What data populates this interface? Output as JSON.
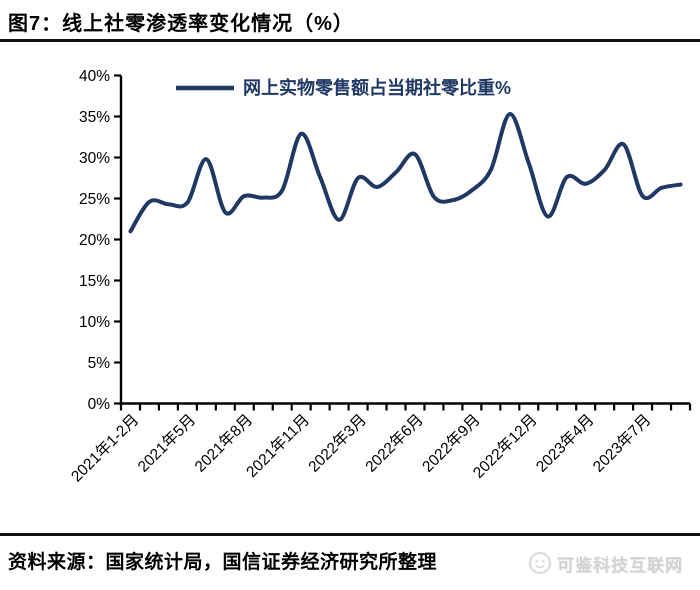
{
  "page": {
    "title": "图7：线上社零渗透率变化情况（%）",
    "source_note": "资料来源：国家统计局，国信证券经济研究所整理",
    "watermark": "可鉴科技互联网"
  },
  "colors": {
    "line": "#1f3864",
    "legend_text": "#1f3864",
    "axis": "#000000",
    "tick_text": "#000000",
    "watermark": "#d6d6d6",
    "background": "#ffffff"
  },
  "chart_data": {
    "type": "line",
    "title": "线上社零渗透率变化情况（%）",
    "legend": [
      {
        "label": "网上实物零售额占当期社零比重%",
        "color": "#1f3864"
      }
    ],
    "legend_position": "top-center",
    "smooth": true,
    "grid": false,
    "xlabel": "",
    "ylabel": "",
    "ylim": [
      0,
      40
    ],
    "ytick_step": 5,
    "yticklabels": [
      "0%",
      "5%",
      "10%",
      "15%",
      "20%",
      "25%",
      "30%",
      "35%",
      "40%"
    ],
    "xtick_label_interval": 3,
    "visible_xtick_labels": [
      "2021年1-2月",
      "2021年5月",
      "2021年8月",
      "2021年11月",
      "2022年3月",
      "2022年6月",
      "2022年9月",
      "2022年12月",
      "2023年4月",
      "2023年7月"
    ],
    "categories": [
      "2021年1-2月",
      "2021年3月",
      "2021年4月",
      "2021年5月",
      "2021年6月",
      "2021年7月",
      "2021年8月",
      "2021年9月",
      "2021年10月",
      "2021年11月",
      "2021年12月",
      "2022年1-2月",
      "2022年3月",
      "2022年4月",
      "2022年5月",
      "2022年6月",
      "2022年7月",
      "2022年8月",
      "2022年9月",
      "2022年10月",
      "2022年11月",
      "2022年12月",
      "2023年1-2月",
      "2023年3月",
      "2023年4月",
      "2023年5月",
      "2023年6月",
      "2023年7月",
      "2023年8月",
      "2023年9月"
    ],
    "series": [
      {
        "name": "网上实物零售额占当期社零比重%",
        "values": [
          21.0,
          24.6,
          24.3,
          24.5,
          29.8,
          23.3,
          25.3,
          25.1,
          26.0,
          32.9,
          27.6,
          22.4,
          27.5,
          26.4,
          28.2,
          30.4,
          25.2,
          24.8,
          26.0,
          28.5,
          35.3,
          29.3,
          22.8,
          27.6,
          26.8,
          28.5,
          31.6,
          25.3,
          26.3,
          26.7
        ]
      }
    ]
  }
}
